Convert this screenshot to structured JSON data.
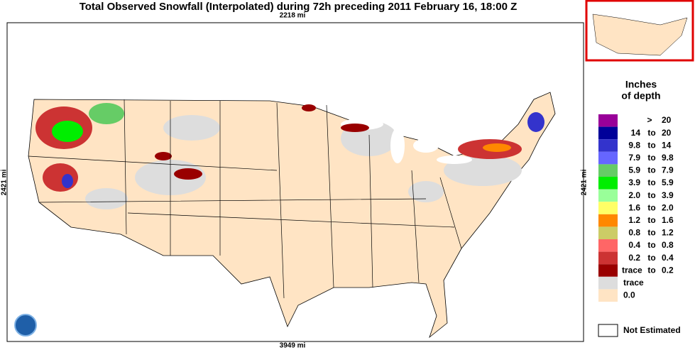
{
  "header": {
    "title": "Total Observed Snowfall (Interpolated) during 72h preceding 2011 February 16, 18:00 Z",
    "top_scale": "2218 mi",
    "left_scale": "2421 mi",
    "right_scale": "2421 mi",
    "bottom_scale": "3949 mi"
  },
  "legend": {
    "title": [
      "Inches",
      "of depth"
    ],
    "entries": [
      {
        "color": "#990099",
        "parts": [
          ">",
          "20"
        ]
      },
      {
        "color": "#000099",
        "parts": [
          "14",
          "to",
          "20"
        ]
      },
      {
        "color": "#3333cc",
        "parts": [
          "9.8",
          "to",
          "14"
        ]
      },
      {
        "color": "#6666ff",
        "parts": [
          "7.9",
          "to",
          "9.8"
        ]
      },
      {
        "color": "#66cc66",
        "parts": [
          "5.9",
          "to",
          "7.9"
        ]
      },
      {
        "color": "#00ee00",
        "parts": [
          "3.9",
          "to",
          "5.9"
        ]
      },
      {
        "color": "#99ff99",
        "parts": [
          "2.0",
          "to",
          "3.9"
        ]
      },
      {
        "color": "#ffff66",
        "parts": [
          "1.6",
          "to",
          "2.0"
        ]
      },
      {
        "color": "#ff8800",
        "parts": [
          "1.2",
          "to",
          "1.6"
        ]
      },
      {
        "color": "#cccc66",
        "parts": [
          "0.8",
          "to",
          "1.2"
        ]
      },
      {
        "color": "#ff6666",
        "parts": [
          "0.4",
          "to",
          "0.8"
        ]
      },
      {
        "color": "#cc3333",
        "parts": [
          "0.2",
          "to",
          "0.4"
        ]
      },
      {
        "color": "#990000",
        "parts": [
          "trace",
          "to",
          "0.2"
        ]
      },
      {
        "color": "#dddddd",
        "parts": [
          "trace"
        ]
      },
      {
        "color": "#ffe4c4",
        "parts": [
          "0.0"
        ]
      }
    ],
    "not_estimated": "Not Estimated"
  }
}
